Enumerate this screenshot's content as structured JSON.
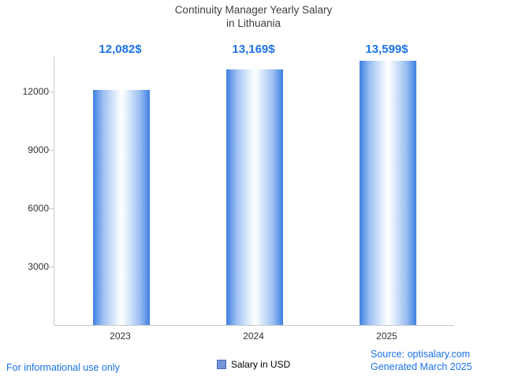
{
  "title": {
    "line1": "Continuity Manager Yearly Salary",
    "line2": "in Lithuania"
  },
  "chart_data": {
    "type": "bar",
    "title": "Continuity Manager Yearly Salary in Lithuania",
    "categories": [
      "2023",
      "2024",
      "2025"
    ],
    "values": [
      12082,
      13169,
      13599
    ],
    "value_labels": [
      "12,082$",
      "13,169$",
      "13,599$"
    ],
    "series_name": "Salary in USD",
    "xlabel": "",
    "ylabel": "",
    "yticks": [
      3000,
      6000,
      9000,
      12000
    ],
    "ylim": [
      0,
      13800
    ],
    "grid": false,
    "legend_position": "bottom",
    "bar_gradient_edge_color": "#3f7fe0",
    "bar_gradient_center_color": "#ffffff",
    "value_label_color": "#1a73e8"
  },
  "legend": {
    "label": "Salary in USD"
  },
  "footer": {
    "left": "For informational use only",
    "source_prefix": "Source: ",
    "source_link": "optisalary.com",
    "generated": "Generated March 2025"
  }
}
